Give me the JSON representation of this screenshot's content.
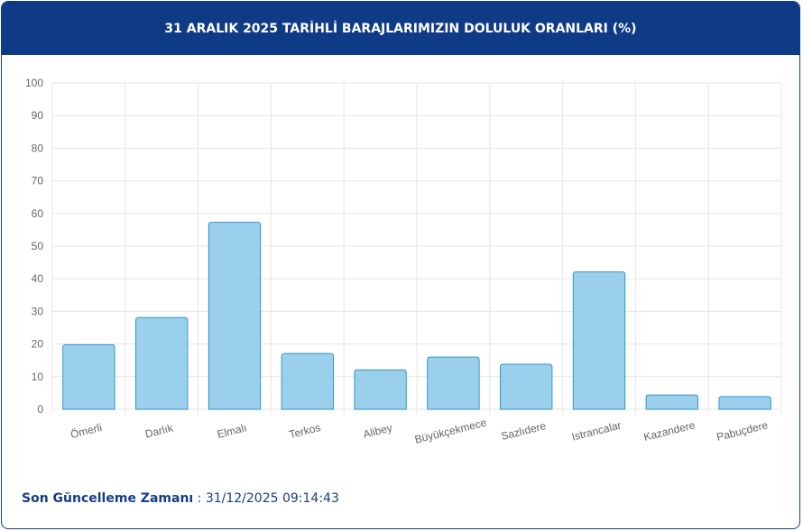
{
  "chart_data": {
    "type": "bar",
    "title": "31 ARALIK 2025 TARİHLİ BARAJLARIMIZIN DOLULUK ORANLARI (%)",
    "categories": [
      "Ömerli",
      "Darlık",
      "Elmalı",
      "Terkos",
      "Alibey",
      "Büyükçekmece",
      "Sazlıdere",
      "Istrancalar",
      "Kazandere",
      "Pabuçdere"
    ],
    "values": [
      19.8,
      28.1,
      57.3,
      17.1,
      12.1,
      16.0,
      13.8,
      42.1,
      4.4,
      3.9
    ],
    "color": "#9bd0ec",
    "edge_color": "#2f95cf",
    "ylim": [
      0,
      100
    ],
    "yticks": [
      0,
      10,
      20,
      30,
      40,
      50,
      60,
      70,
      80,
      90,
      100
    ],
    "grid": true
  },
  "footer": {
    "label": "Son Güncelleme Zamanı",
    "value": ": 31/12/2025 09:14:43"
  }
}
